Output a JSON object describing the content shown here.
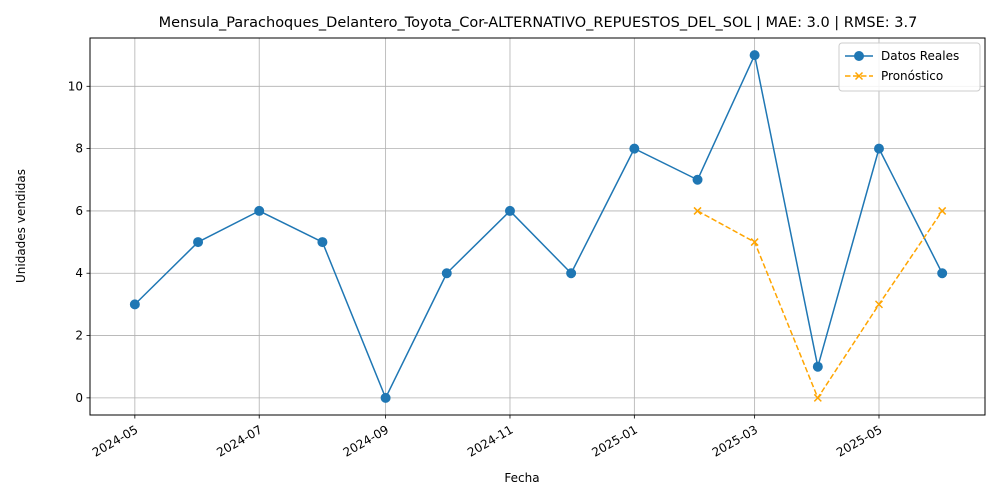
{
  "chart_data": {
    "type": "line",
    "title": "Mensula_Parachoques_Delantero_Toyota_Cor-ALTERNATIVO_REPUESTOS_DEL_SOL | MAE: 3.0 | RMSE: 3.7",
    "xlabel": "Fecha",
    "ylabel": "Unidades vendidas",
    "ylim": [
      -0.55,
      11.55
    ],
    "xlim": [
      "2024-04-09",
      "2025-06-22"
    ],
    "x_ticks": [
      "2024-05",
      "2024-07",
      "2024-09",
      "2024-11",
      "2025-01",
      "2025-03",
      "2025-05"
    ],
    "y_ticks": [
      0,
      2,
      4,
      6,
      8,
      10
    ],
    "grid": true,
    "legend_position": "top-right",
    "series": [
      {
        "name": "Datos Reales",
        "color": "#1f77b4",
        "style": "solid",
        "marker": "circle",
        "points": [
          {
            "x": "2024-05-01",
            "y": 3
          },
          {
            "x": "2024-06-01",
            "y": 5
          },
          {
            "x": "2024-07-01",
            "y": 6
          },
          {
            "x": "2024-08-01",
            "y": 5
          },
          {
            "x": "2024-09-01",
            "y": 0
          },
          {
            "x": "2024-10-01",
            "y": 4
          },
          {
            "x": "2024-11-01",
            "y": 6
          },
          {
            "x": "2024-12-01",
            "y": 4
          },
          {
            "x": "2025-01-01",
            "y": 8
          },
          {
            "x": "2025-02-01",
            "y": 7
          },
          {
            "x": "2025-03-01",
            "y": 11
          },
          {
            "x": "2025-04-01",
            "y": 1
          },
          {
            "x": "2025-05-01",
            "y": 8
          },
          {
            "x": "2025-06-01",
            "y": 4
          }
        ]
      },
      {
        "name": "Pronóstico",
        "color": "#ffa500",
        "style": "dashed",
        "marker": "x",
        "points": [
          {
            "x": "2025-02-01",
            "y": 6
          },
          {
            "x": "2025-03-01",
            "y": 5
          },
          {
            "x": "2025-04-01",
            "y": 0
          },
          {
            "x": "2025-05-01",
            "y": 3
          },
          {
            "x": "2025-06-01",
            "y": 6
          }
        ]
      }
    ]
  }
}
